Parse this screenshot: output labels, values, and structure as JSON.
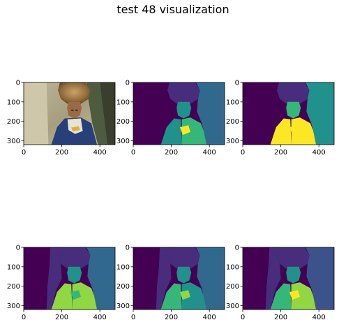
{
  "figure": {
    "title": "test 48 visualization"
  },
  "chart_data": [
    {
      "type": "image",
      "panel": "original-photo",
      "xlim": [
        0,
        480
      ],
      "ylim": [
        320,
        0
      ],
      "xticks": [
        0,
        200,
        400
      ],
      "yticks": [
        0,
        100,
        200,
        300
      ]
    },
    {
      "type": "heatmap",
      "panel": "segmentation-1",
      "colormap": "viridis",
      "xlim": [
        0,
        480
      ],
      "ylim": [
        320,
        0
      ],
      "xticks": [
        0,
        200,
        400
      ],
      "yticks": [
        0,
        100,
        200,
        300
      ]
    },
    {
      "type": "heatmap",
      "panel": "segmentation-2",
      "colormap": "viridis",
      "xlim": [
        0,
        480
      ],
      "ylim": [
        320,
        0
      ],
      "xticks": [
        0,
        200,
        400
      ],
      "yticks": [
        0,
        100,
        200,
        300
      ]
    },
    {
      "type": "heatmap",
      "panel": "segmentation-3",
      "colormap": "viridis",
      "xlim": [
        0,
        480
      ],
      "ylim": [
        320,
        0
      ],
      "xticks": [
        0,
        200,
        400
      ],
      "yticks": [
        0,
        100,
        200,
        300
      ]
    },
    {
      "type": "heatmap",
      "panel": "segmentation-4",
      "colormap": "viridis",
      "xlim": [
        0,
        480
      ],
      "ylim": [
        320,
        0
      ],
      "xticks": [
        0,
        200,
        400
      ],
      "yticks": [
        0,
        100,
        200,
        300
      ]
    },
    {
      "type": "heatmap",
      "panel": "segmentation-5",
      "colormap": "viridis",
      "xlim": [
        0,
        480
      ],
      "ylim": [
        320,
        0
      ],
      "xticks": [
        0,
        200,
        400
      ],
      "yticks": [
        0,
        100,
        200,
        300
      ]
    }
  ],
  "colors": {
    "viridis_dark": "#440154",
    "viridis_indigo": "#472d7b",
    "viridis_blue": "#3b528b",
    "viridis_steel": "#31688e",
    "viridis_teal": "#21918c",
    "viridis_green": "#35b779",
    "viridis_lime": "#90d743",
    "viridis_yellow": "#fde725"
  }
}
